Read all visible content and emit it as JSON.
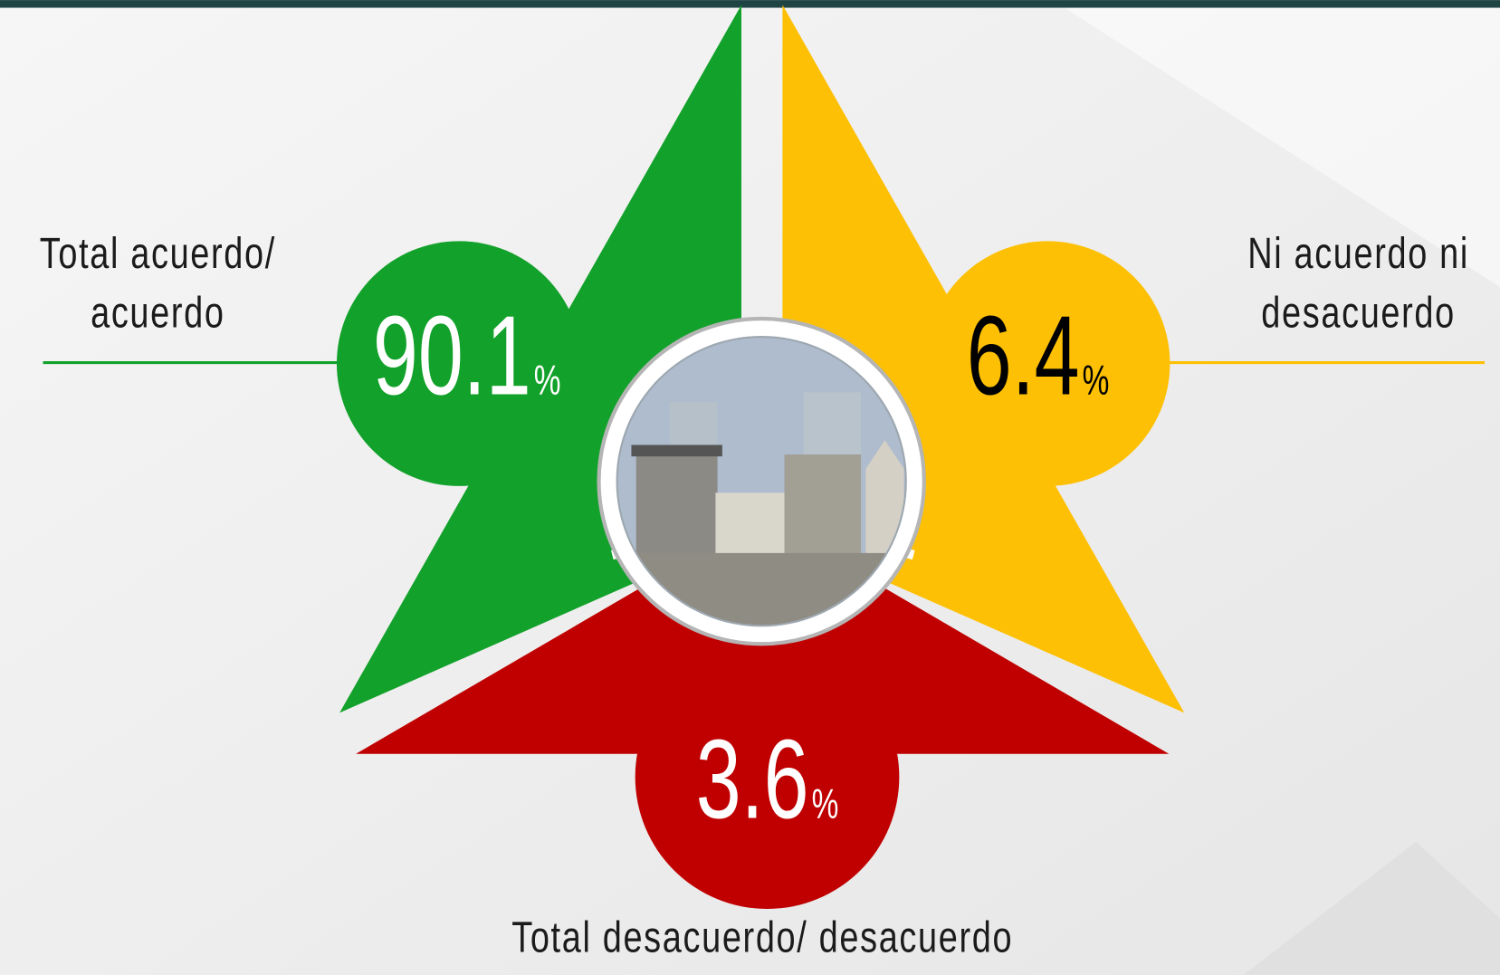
{
  "segments": [
    {
      "label_lines": [
        "Total acuerdo/",
        "acuerdo"
      ],
      "value": 90.1,
      "unit": "%",
      "color": "#12a12a",
      "text_color": "#ffffff"
    },
    {
      "label_lines": [
        "Ni acuerdo ni",
        "desacuerdo"
      ],
      "value": 6.4,
      "unit": "%",
      "color": "#fdc004",
      "text_color": "#000000"
    },
    {
      "label_lines": [
        "Total desacuerdo/ desacuerdo"
      ],
      "value": 3.6,
      "unit": "%",
      "color": "#c00000",
      "text_color": "#ffffff"
    }
  ]
}
